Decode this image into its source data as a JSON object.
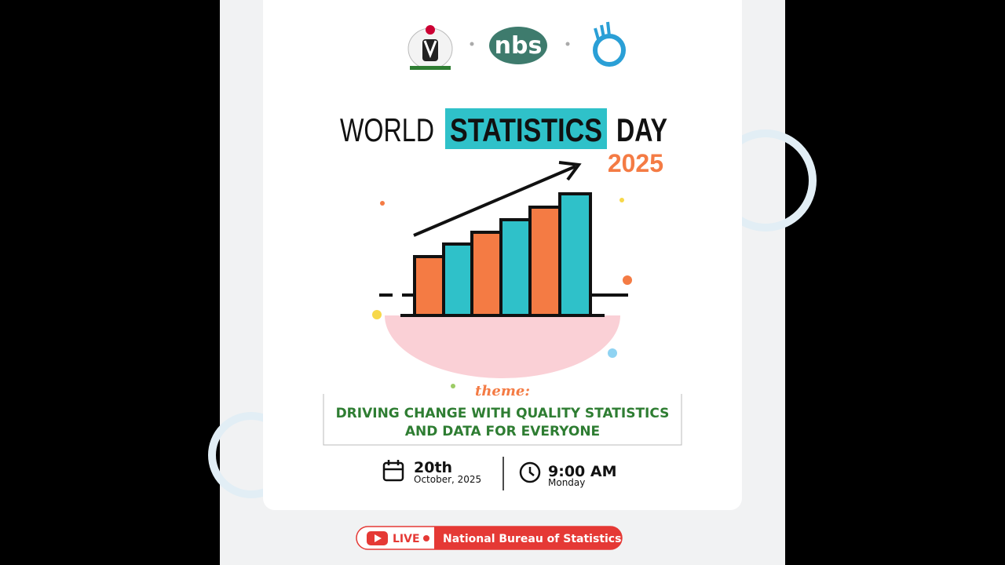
{
  "logos": {
    "nbs": "nbs"
  },
  "title": {
    "word1": "WORLD",
    "highlight": "STATISTICS",
    "word2": "DAY",
    "year": "2025"
  },
  "theme": {
    "label": "theme:",
    "lines": [
      "DRIVING CHANGE WITH QUALITY STATISTICS",
      "AND DATA FOR EVERYONE"
    ]
  },
  "date": {
    "day": "20th",
    "month_year": "October, 2025"
  },
  "time": {
    "time": "9:00 AM",
    "weekday": "Monday"
  },
  "live_banner": {
    "live": "LIVE",
    "channel": "National Bureau of Statistics"
  }
}
